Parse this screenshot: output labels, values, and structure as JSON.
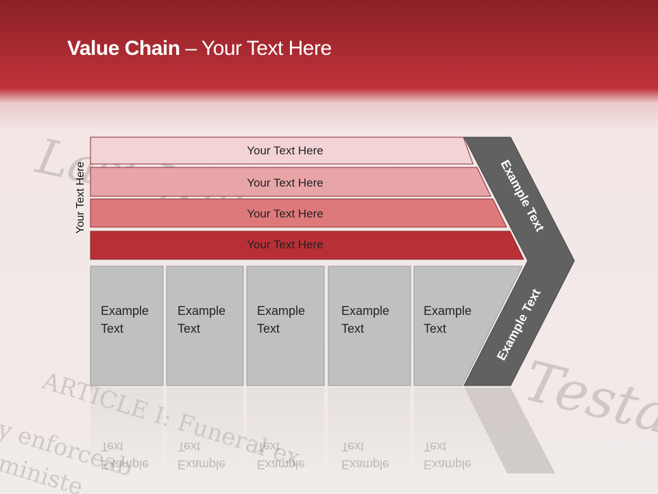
{
  "title": {
    "bold": "Value Chain",
    "rest": " – Your Text Here"
  },
  "side_label": "Your Text Here",
  "bars": [
    {
      "label": "Your Text Here",
      "color": "#f3d3d5"
    },
    {
      "label": "Your Text Here",
      "color": "#e8a5a8"
    },
    {
      "label": "Your Text Here",
      "color": "#de797b"
    },
    {
      "label": "Your Text Here",
      "color": "#b82f35"
    }
  ],
  "boxes": [
    {
      "line1": "Example",
      "line2": "Text"
    },
    {
      "line1": "Example",
      "line2": "Text"
    },
    {
      "line1": "Example",
      "line2": "Text"
    },
    {
      "line1": "Example",
      "line2": "Text"
    },
    {
      "line1": "Example",
      "line2": "Text"
    }
  ],
  "chevron": {
    "top_label": "Example Text",
    "bottom_label": "Example Text",
    "color": "#616161"
  },
  "background_photo_text": [
    "Last Will",
    "Testa",
    "ARTICLE I: Funeral ex",
    "y enforceab",
    "ministe"
  ],
  "colors": {
    "header": "#b52e35",
    "box": "#c0c0c0"
  }
}
